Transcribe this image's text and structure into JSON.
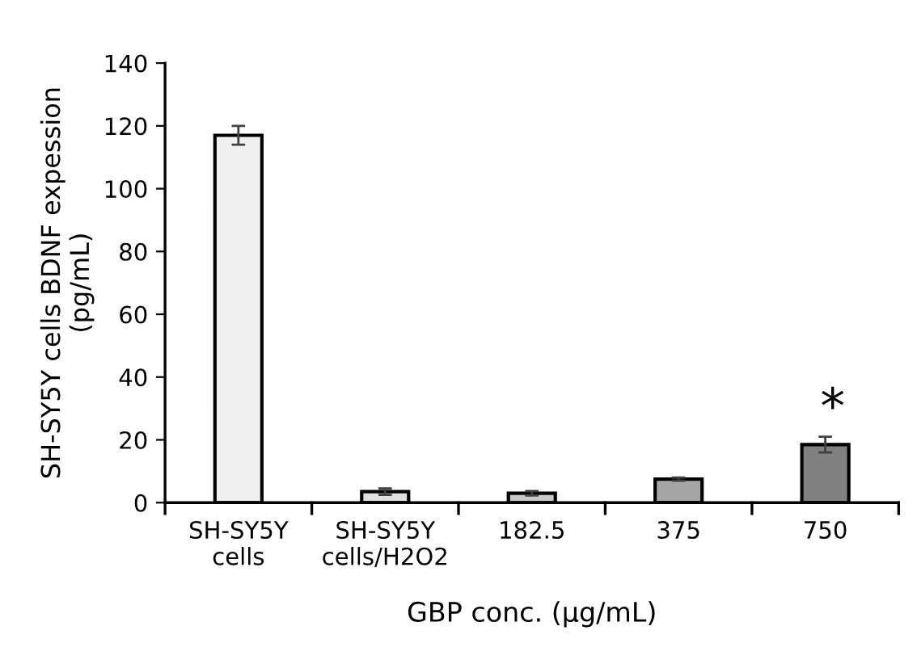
{
  "chart_data": {
    "type": "bar",
    "categories": [
      "SH-SY5Y\ncells",
      "SH-SY5Y\ncells/H2O2",
      "182.5",
      "375",
      "750"
    ],
    "values": [
      117,
      3.5,
      3,
      7.5,
      18.5
    ],
    "errors": [
      3,
      1,
      0.7,
      0.5,
      2.5
    ],
    "colors": [
      "#f0f0f0",
      "#e0e0e0",
      "#c8c8c8",
      "#a6a6a6",
      "#808080"
    ],
    "xlabel": "GBP conc. (μg/mL)",
    "ylabel": "SH-SY5Y cells BDNF expession\n(pg/mL)",
    "ylim": [
      0,
      140
    ],
    "yticks": [
      0,
      20,
      40,
      60,
      80,
      100,
      120,
      140
    ],
    "annotations": [
      {
        "text": "*",
        "x": "750",
        "y": 22
      }
    ],
    "grid": false,
    "legend": false
  }
}
